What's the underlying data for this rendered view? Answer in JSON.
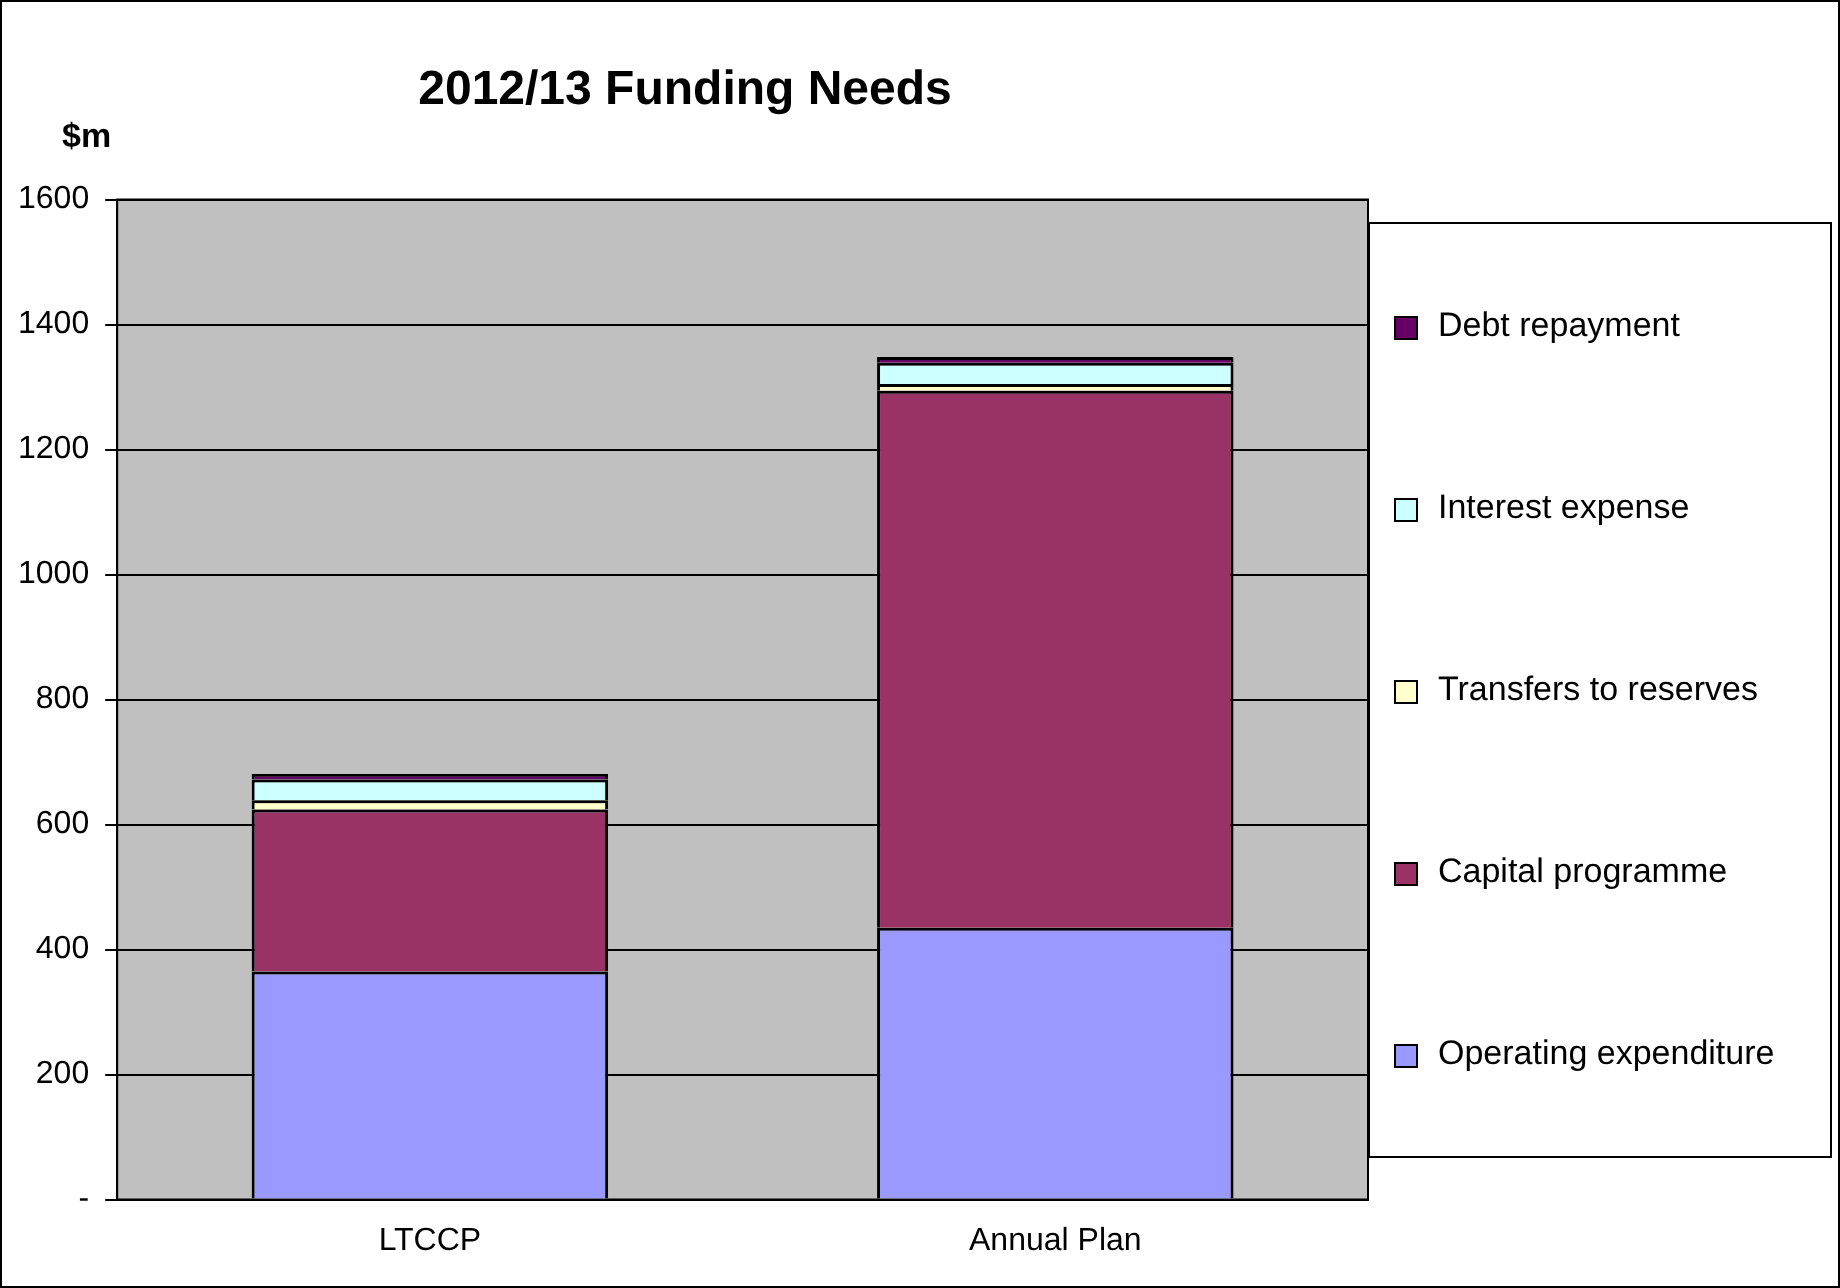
{
  "chart_data": {
    "type": "bar",
    "title": "2012/13 Funding Needs",
    "ylabel": "$m",
    "categories": [
      "LTCCP",
      "Annual Plan"
    ],
    "stacked": true,
    "series": [
      {
        "name": "Operating expenditure",
        "color": "#9999ff",
        "values": [
          365,
          435
        ]
      },
      {
        "name": "Capital programme",
        "color": "#993366",
        "values": [
          259,
          859
        ]
      },
      {
        "name": "Transfers to reserves",
        "color": "#ffffcc",
        "values": [
          15,
          11
        ]
      },
      {
        "name": "Interest expense",
        "color": "#ccffff",
        "values": [
          33,
          34
        ]
      },
      {
        "name": "Debt repayment",
        "color": "#660066",
        "values": [
          9,
          9
        ]
      }
    ],
    "ylim": [
      0,
      1600
    ],
    "yticks": [
      {
        "value": 0,
        "label": "-"
      },
      200,
      400,
      600,
      800,
      1000,
      1200,
      1400,
      1600
    ],
    "grid": "y",
    "legend": "right"
  }
}
